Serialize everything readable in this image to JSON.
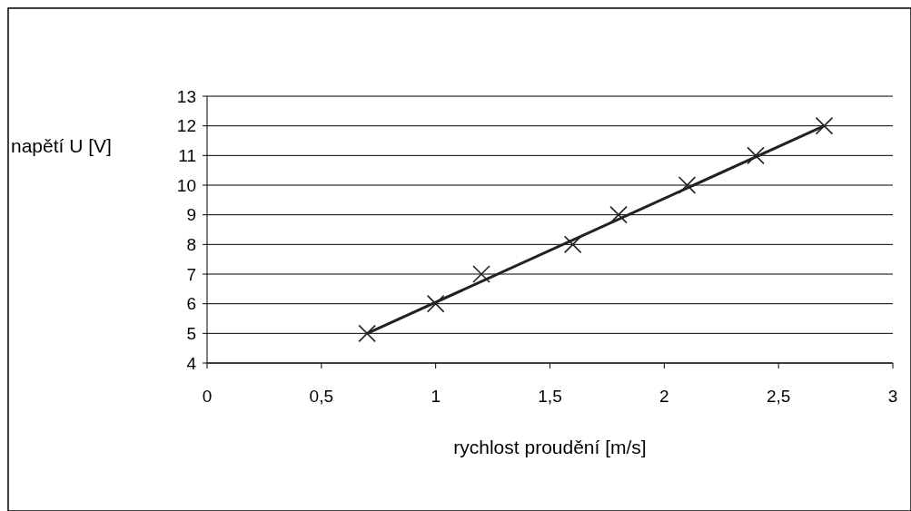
{
  "chart_data": {
    "type": "scatter",
    "xlabel": "rychlost proudění [m/s]",
    "ylabel": "napětí U [V]",
    "xlim": [
      0,
      3
    ],
    "xticks": [
      0,
      {
        "value": 0.5,
        "label": "0,5"
      },
      1,
      {
        "value": 1.5,
        "label": "1,5"
      },
      2,
      {
        "value": 2.5,
        "label": "2,5"
      },
      3
    ],
    "ylim": [
      4,
      13
    ],
    "yticks": [
      4,
      5,
      6,
      7,
      8,
      9,
      10,
      11,
      12,
      13
    ],
    "grid": "y",
    "series": [
      {
        "color": "#222222",
        "marker": "cross",
        "x": [
          0.7,
          1,
          1.2,
          1.6,
          1.8,
          2.1,
          2.4,
          2.7
        ],
        "values": [
          5,
          6,
          7,
          8,
          9,
          10,
          11,
          12
        ]
      },
      {
        "type": "line",
        "color": "#222222",
        "line_style": "solid",
        "x": [
          0.7,
          2.7
        ],
        "values": [
          5,
          12
        ]
      }
    ]
  }
}
